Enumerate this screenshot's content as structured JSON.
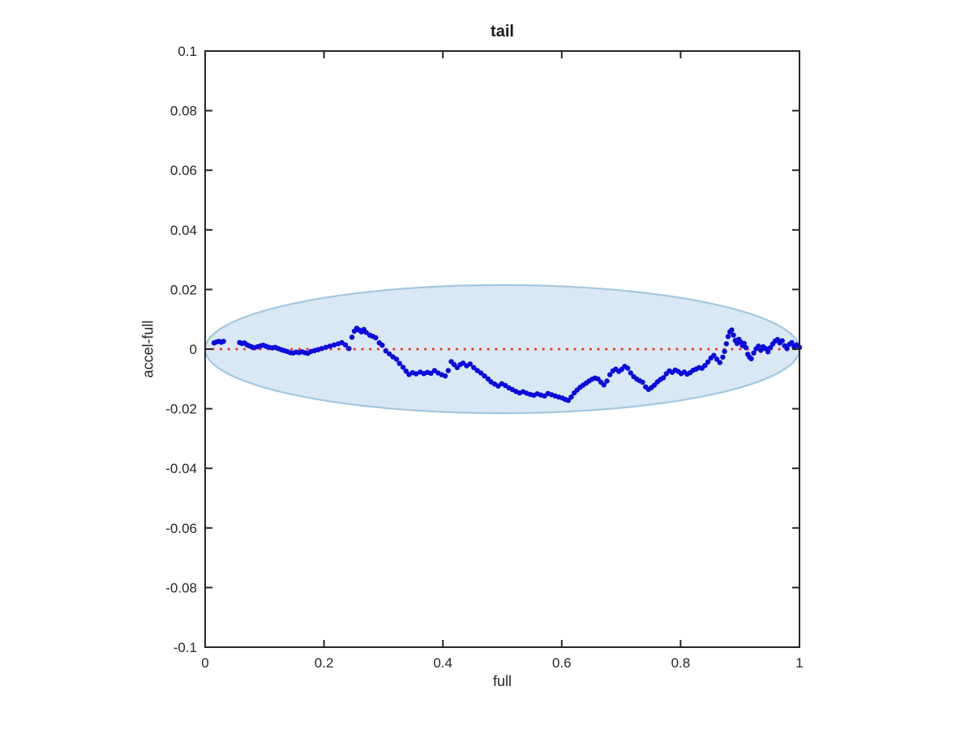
{
  "figure": {
    "background": "#ffffff"
  },
  "chart_data": {
    "type": "scatter",
    "title": "tail",
    "xlabel": "full",
    "ylabel": "accel-full",
    "xlim": [
      0,
      1
    ],
    "ylim": [
      -0.1,
      0.1
    ],
    "grid": false,
    "legend": "none",
    "xticks": {
      "values": [
        0,
        0.2,
        0.4,
        0.6,
        0.8,
        1
      ],
      "labels": [
        "0",
        "0.2",
        "0.4",
        "0.6",
        "0.8",
        "1"
      ]
    },
    "yticks": {
      "values": [
        0.1,
        0.08,
        0.06,
        0.04,
        0.02,
        0,
        -0.02,
        -0.04,
        -0.06,
        -0.08,
        -0.1
      ],
      "labels": [
        "0.1",
        "0.08",
        "0.06",
        "0.04",
        "0.02",
        "0",
        "-0.02",
        "-0.04",
        "-0.06",
        "-0.08",
        "-0.1"
      ]
    },
    "annotations": {
      "ellipse": {
        "cx": 0.5,
        "cy": 0,
        "rx": 0.5,
        "ry": 0.0215,
        "fill": "#d9e8f4",
        "stroke": "#a3c7e0",
        "stroke_width": 2.2
      },
      "zero_line": {
        "y": 0,
        "color": "#ee3322",
        "style": "dotted",
        "x_start": 0,
        "x_end": 1
      }
    },
    "series": [
      {
        "name": "accel-full",
        "marker": "point",
        "color": "#0b0bdb",
        "marker_radius": 3.2,
        "points": [
          [
            0.015,
            0.0021
          ],
          [
            0.019,
            0.0024
          ],
          [
            0.023,
            0.0026
          ],
          [
            0.027,
            0.0023
          ],
          [
            0.031,
            0.0026
          ],
          [
            0.058,
            0.0022
          ],
          [
            0.062,
            0.0019
          ],
          [
            0.066,
            0.0021
          ],
          [
            0.07,
            0.0015
          ],
          [
            0.074,
            0.0011
          ],
          [
            0.078,
            0.0008
          ],
          [
            0.083,
            0.0005
          ],
          [
            0.088,
            0.0008
          ],
          [
            0.093,
            0.0011
          ],
          [
            0.098,
            0.0013
          ],
          [
            0.103,
            0.0009
          ],
          [
            0.108,
            0.0006
          ],
          [
            0.113,
            0.0004
          ],
          [
            0.118,
            0.0006
          ],
          [
            0.123,
            0.0002
          ],
          [
            0.128,
            -0.0002
          ],
          [
            0.133,
            -0.0005
          ],
          [
            0.138,
            -0.0008
          ],
          [
            0.143,
            -0.0012
          ],
          [
            0.148,
            -0.0013
          ],
          [
            0.153,
            -0.001
          ],
          [
            0.158,
            -0.0012
          ],
          [
            0.163,
            -0.0009
          ],
          [
            0.168,
            -0.0012
          ],
          [
            0.173,
            -0.0014
          ],
          [
            0.178,
            -0.0008
          ],
          [
            0.184,
            -0.0005
          ],
          [
            0.19,
            -0.0002
          ],
          [
            0.196,
            0.0002
          ],
          [
            0.203,
            0.0006
          ],
          [
            0.21,
            0.001
          ],
          [
            0.217,
            0.0014
          ],
          [
            0.224,
            0.0018
          ],
          [
            0.23,
            0.0022
          ],
          [
            0.236,
            0.0014
          ],
          [
            0.242,
            0.0002
          ],
          [
            0.247,
            0.004
          ],
          [
            0.251,
            0.006
          ],
          [
            0.255,
            0.007
          ],
          [
            0.259,
            0.0064
          ],
          [
            0.263,
            0.0058
          ],
          [
            0.267,
            0.0066
          ],
          [
            0.271,
            0.0056
          ],
          [
            0.277,
            0.0047
          ],
          [
            0.282,
            0.0043
          ],
          [
            0.287,
            0.0038
          ],
          [
            0.293,
            0.0021
          ],
          [
            0.298,
            0.0013
          ],
          [
            0.304,
            -0.0006
          ],
          [
            0.31,
            -0.0016
          ],
          [
            0.316,
            -0.0026
          ],
          [
            0.322,
            -0.0034
          ],
          [
            0.327,
            -0.0048
          ],
          [
            0.333,
            -0.0061
          ],
          [
            0.338,
            -0.0074
          ],
          [
            0.343,
            -0.0085
          ],
          [
            0.349,
            -0.0079
          ],
          [
            0.355,
            -0.0083
          ],
          [
            0.362,
            -0.0077
          ],
          [
            0.368,
            -0.0082
          ],
          [
            0.374,
            -0.0078
          ],
          [
            0.38,
            -0.0081
          ],
          [
            0.386,
            -0.0072
          ],
          [
            0.392,
            -0.008
          ],
          [
            0.398,
            -0.0086
          ],
          [
            0.404,
            -0.009
          ],
          [
            0.409,
            -0.0072
          ],
          [
            0.414,
            -0.0042
          ],
          [
            0.419,
            -0.0052
          ],
          [
            0.424,
            -0.0062
          ],
          [
            0.429,
            -0.0052
          ],
          [
            0.434,
            -0.0047
          ],
          [
            0.44,
            -0.0056
          ],
          [
            0.446,
            -0.005
          ],
          [
            0.452,
            -0.0062
          ],
          [
            0.458,
            -0.0072
          ],
          [
            0.464,
            -0.008
          ],
          [
            0.47,
            -0.009
          ],
          [
            0.476,
            -0.01
          ],
          [
            0.481,
            -0.011
          ],
          [
            0.487,
            -0.0117
          ],
          [
            0.493,
            -0.0124
          ],
          [
            0.499,
            -0.0116
          ],
          [
            0.505,
            -0.0122
          ],
          [
            0.511,
            -0.013
          ],
          [
            0.517,
            -0.0136
          ],
          [
            0.523,
            -0.0142
          ],
          [
            0.529,
            -0.0147
          ],
          [
            0.535,
            -0.0143
          ],
          [
            0.541,
            -0.0148
          ],
          [
            0.547,
            -0.0152
          ],
          [
            0.553,
            -0.0155
          ],
          [
            0.559,
            -0.015
          ],
          [
            0.565,
            -0.0154
          ],
          [
            0.571,
            -0.0157
          ],
          [
            0.577,
            -0.0149
          ],
          [
            0.583,
            -0.0153
          ],
          [
            0.589,
            -0.0157
          ],
          [
            0.595,
            -0.0161
          ],
          [
            0.601,
            -0.0164
          ],
          [
            0.606,
            -0.0169
          ],
          [
            0.611,
            -0.0172
          ],
          [
            0.616,
            -0.0161
          ],
          [
            0.621,
            -0.0147
          ],
          [
            0.626,
            -0.0137
          ],
          [
            0.631,
            -0.0128
          ],
          [
            0.636,
            -0.0121
          ],
          [
            0.641,
            -0.0114
          ],
          [
            0.646,
            -0.0107
          ],
          [
            0.651,
            -0.0101
          ],
          [
            0.656,
            -0.0097
          ],
          [
            0.661,
            -0.01
          ],
          [
            0.666,
            -0.0111
          ],
          [
            0.671,
            -0.012
          ],
          [
            0.676,
            -0.0107
          ],
          [
            0.681,
            -0.0086
          ],
          [
            0.686,
            -0.0073
          ],
          [
            0.691,
            -0.0067
          ],
          [
            0.696,
            -0.0075
          ],
          [
            0.701,
            -0.0068
          ],
          [
            0.706,
            -0.0058
          ],
          [
            0.711,
            -0.0064
          ],
          [
            0.716,
            -0.008
          ],
          [
            0.721,
            -0.0092
          ],
          [
            0.726,
            -0.01
          ],
          [
            0.731,
            -0.0106
          ],
          [
            0.736,
            -0.0111
          ],
          [
            0.741,
            -0.0127
          ],
          [
            0.746,
            -0.0135
          ],
          [
            0.751,
            -0.0129
          ],
          [
            0.756,
            -0.0121
          ],
          [
            0.761,
            -0.011
          ],
          [
            0.766,
            -0.0102
          ],
          [
            0.771,
            -0.0096
          ],
          [
            0.776,
            -0.0083
          ],
          [
            0.781,
            -0.0073
          ],
          [
            0.786,
            -0.0078
          ],
          [
            0.791,
            -0.007
          ],
          [
            0.796,
            -0.0075
          ],
          [
            0.801,
            -0.0082
          ],
          [
            0.806,
            -0.0077
          ],
          [
            0.811,
            -0.0084
          ],
          [
            0.816,
            -0.0079
          ],
          [
            0.821,
            -0.0071
          ],
          [
            0.826,
            -0.0067
          ],
          [
            0.831,
            -0.0062
          ],
          [
            0.836,
            -0.0064
          ],
          [
            0.841,
            -0.0055
          ],
          [
            0.846,
            -0.0043
          ],
          [
            0.851,
            -0.003
          ],
          [
            0.856,
            -0.0021
          ],
          [
            0.861,
            -0.0034
          ],
          [
            0.866,
            -0.0045
          ],
          [
            0.871,
            -0.0027
          ],
          [
            0.874,
            -0.0008
          ],
          [
            0.877,
            0.0018
          ],
          [
            0.88,
            0.0042
          ],
          [
            0.883,
            0.0058
          ],
          [
            0.886,
            0.0064
          ],
          [
            0.889,
            0.0047
          ],
          [
            0.892,
            0.0029
          ],
          [
            0.895,
            0.0019
          ],
          [
            0.898,
            0.0033
          ],
          [
            0.901,
            0.0024
          ],
          [
            0.904,
            0.0012
          ],
          [
            0.907,
            0.0019
          ],
          [
            0.91,
            0.0005
          ],
          [
            0.913,
            -0.0017
          ],
          [
            0.916,
            -0.0027
          ],
          [
            0.919,
            -0.0032
          ],
          [
            0.923,
            -0.0013
          ],
          [
            0.927,
            0.0001
          ],
          [
            0.931,
            0.001
          ],
          [
            0.935,
            -0.0004
          ],
          [
            0.939,
            0.0008
          ],
          [
            0.943,
            0.0002
          ],
          [
            0.947,
            -0.0009
          ],
          [
            0.951,
            0.0005
          ],
          [
            0.955,
            0.0017
          ],
          [
            0.959,
            0.0027
          ],
          [
            0.963,
            0.0032
          ],
          [
            0.967,
            0.0021
          ],
          [
            0.971,
            0.0028
          ],
          [
            0.975,
            0.0011
          ],
          [
            0.979,
            0.0002
          ],
          [
            0.983,
            0.0016
          ],
          [
            0.987,
            0.0022
          ],
          [
            0.991,
            0.0008
          ],
          [
            0.995,
            0.0014
          ],
          [
            1.0,
            0.0006
          ]
        ]
      }
    ],
    "style": {
      "frame_color": "#262626",
      "frame_width": 2,
      "tick_length": 9,
      "tick_label_color": "#262626",
      "tick_font_size": 17
    }
  }
}
